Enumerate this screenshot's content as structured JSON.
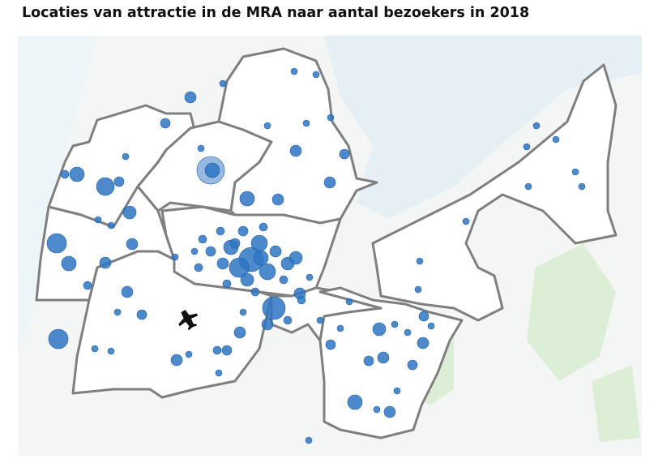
{
  "title": "Locaties van attractie in de MRA naar aantal bezoekers in 2018"
}
